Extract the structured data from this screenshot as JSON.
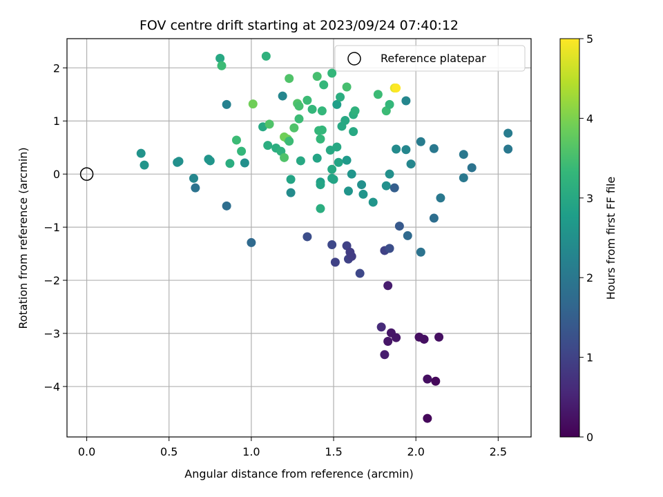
{
  "chart_data": {
    "type": "scatter",
    "title": "FOV centre drift starting at 2023/09/24 07:40:12",
    "xlabel": "Angular distance from reference (arcmin)",
    "ylabel": "Rotation from reference (arcmin)",
    "xlim": [
      -0.12,
      2.7
    ],
    "ylim": [
      -4.95,
      2.55
    ],
    "xticks": [
      "0.0",
      "0.5",
      "1.0",
      "1.5",
      "2.0",
      "2.5"
    ],
    "yticks": [
      "2",
      "1",
      "0",
      "−1",
      "−2",
      "−3",
      "−4"
    ],
    "grid": true,
    "legend": {
      "label": "Reference platepar",
      "placement": "top-right",
      "marker": "hollow-circle"
    },
    "reference_point": {
      "x": 0.0,
      "y": 0.0
    },
    "colorbar": {
      "label": "Hours from first FF file",
      "range": [
        0,
        5
      ],
      "ticks": [
        "0",
        "1",
        "2",
        "3",
        "4",
        "5"
      ],
      "colormap": [
        "#440154",
        "#482878",
        "#3e4989",
        "#31688e",
        "#26828e",
        "#1f9e89",
        "#35b779",
        "#6ece58",
        "#b5de2b",
        "#fde725"
      ]
    },
    "points": [
      {
        "x": 0.33,
        "y": 0.39,
        "c": 2.55
      },
      {
        "x": 0.35,
        "y": 0.17,
        "c": 2.6
      },
      {
        "x": 0.55,
        "y": 0.22,
        "c": 2.5
      },
      {
        "x": 0.56,
        "y": 0.24,
        "c": 2.5
      },
      {
        "x": 0.65,
        "y": -0.08,
        "c": 2.3
      },
      {
        "x": 0.66,
        "y": -0.26,
        "c": 1.9
      },
      {
        "x": 0.74,
        "y": 0.28,
        "c": 2.6
      },
      {
        "x": 0.75,
        "y": 0.25,
        "c": 2.6
      },
      {
        "x": 0.81,
        "y": 2.18,
        "c": 3.0
      },
      {
        "x": 0.82,
        "y": 2.04,
        "c": 3.4
      },
      {
        "x": 0.85,
        "y": 1.31,
        "c": 2.2
      },
      {
        "x": 0.85,
        "y": -0.6,
        "c": 1.8
      },
      {
        "x": 0.87,
        "y": 0.2,
        "c": 3.1
      },
      {
        "x": 0.91,
        "y": 0.64,
        "c": 3.4
      },
      {
        "x": 0.94,
        "y": 0.43,
        "c": 3.3
      },
      {
        "x": 0.96,
        "y": 0.21,
        "c": 2.5
      },
      {
        "x": 1.0,
        "y": -1.29,
        "c": 1.7
      },
      {
        "x": 1.01,
        "y": 1.32,
        "c": 3.9
      },
      {
        "x": 1.07,
        "y": 0.89,
        "c": 3.0
      },
      {
        "x": 1.09,
        "y": 2.22,
        "c": 3.2
      },
      {
        "x": 1.1,
        "y": 0.54,
        "c": 3.1
      },
      {
        "x": 1.11,
        "y": 0.94,
        "c": 3.6
      },
      {
        "x": 1.15,
        "y": 0.49,
        "c": 3.1
      },
      {
        "x": 1.18,
        "y": 0.43,
        "c": 3.2
      },
      {
        "x": 1.19,
        "y": 1.47,
        "c": 2.3
      },
      {
        "x": 1.2,
        "y": 0.31,
        "c": 3.6
      },
      {
        "x": 1.2,
        "y": 0.7,
        "c": 3.9
      },
      {
        "x": 1.22,
        "y": 0.66,
        "c": 3.9
      },
      {
        "x": 1.23,
        "y": 1.8,
        "c": 3.6
      },
      {
        "x": 1.23,
        "y": 0.62,
        "c": 3.4
      },
      {
        "x": 1.24,
        "y": -0.1,
        "c": 2.9
      },
      {
        "x": 1.24,
        "y": -0.35,
        "c": 2.4
      },
      {
        "x": 1.26,
        "y": 0.87,
        "c": 3.6
      },
      {
        "x": 1.28,
        "y": 1.33,
        "c": 3.6
      },
      {
        "x": 1.29,
        "y": 1.28,
        "c": 3.5
      },
      {
        "x": 1.29,
        "y": 1.04,
        "c": 3.4
      },
      {
        "x": 1.3,
        "y": 0.25,
        "c": 3.0
      },
      {
        "x": 1.34,
        "y": 1.39,
        "c": 3.4
      },
      {
        "x": 1.34,
        "y": -1.18,
        "c": 1.2
      },
      {
        "x": 1.37,
        "y": 1.22,
        "c": 3.3
      },
      {
        "x": 1.4,
        "y": 1.84,
        "c": 3.5
      },
      {
        "x": 1.4,
        "y": 0.3,
        "c": 2.9
      },
      {
        "x": 1.41,
        "y": 0.82,
        "c": 3.3
      },
      {
        "x": 1.42,
        "y": 0.66,
        "c": 3.3
      },
      {
        "x": 1.42,
        "y": -0.15,
        "c": 2.8
      },
      {
        "x": 1.42,
        "y": -0.2,
        "c": 2.9
      },
      {
        "x": 1.42,
        "y": -0.65,
        "c": 3.1
      },
      {
        "x": 1.43,
        "y": 0.83,
        "c": 3.3
      },
      {
        "x": 1.43,
        "y": 1.19,
        "c": 3.3
      },
      {
        "x": 1.44,
        "y": 1.68,
        "c": 3.3
      },
      {
        "x": 1.48,
        "y": 0.45,
        "c": 3.0
      },
      {
        "x": 1.49,
        "y": 1.9,
        "c": 3.3
      },
      {
        "x": 1.49,
        "y": 0.09,
        "c": 3.0
      },
      {
        "x": 1.49,
        "y": -0.08,
        "c": 2.9
      },
      {
        "x": 1.5,
        "y": -0.1,
        "c": 2.9
      },
      {
        "x": 1.49,
        "y": -1.33,
        "c": 1.1
      },
      {
        "x": 1.51,
        "y": -1.66,
        "c": 1.0
      },
      {
        "x": 1.52,
        "y": 1.31,
        "c": 2.8
      },
      {
        "x": 1.52,
        "y": 0.51,
        "c": 3.0
      },
      {
        "x": 1.53,
        "y": 0.22,
        "c": 2.9
      },
      {
        "x": 1.54,
        "y": 1.45,
        "c": 3.1
      },
      {
        "x": 1.55,
        "y": 0.9,
        "c": 3.0
      },
      {
        "x": 1.57,
        "y": 1.01,
        "c": 3.0
      },
      {
        "x": 1.58,
        "y": 0.26,
        "c": 2.7
      },
      {
        "x": 1.58,
        "y": 1.64,
        "c": 3.5
      },
      {
        "x": 1.58,
        "y": -1.35,
        "c": 1.0
      },
      {
        "x": 1.59,
        "y": -0.32,
        "c": 2.6
      },
      {
        "x": 1.59,
        "y": -1.6,
        "c": 1.0
      },
      {
        "x": 1.6,
        "y": -1.47,
        "c": 0.9
      },
      {
        "x": 1.61,
        "y": -1.55,
        "c": 0.9
      },
      {
        "x": 1.61,
        "y": 0.0,
        "c": 2.6
      },
      {
        "x": 1.62,
        "y": 0.8,
        "c": 3.0
      },
      {
        "x": 1.62,
        "y": 1.12,
        "c": 3.1
      },
      {
        "x": 1.63,
        "y": 1.19,
        "c": 3.2
      },
      {
        "x": 1.66,
        "y": -1.87,
        "c": 1.1
      },
      {
        "x": 1.67,
        "y": -0.2,
        "c": 2.5
      },
      {
        "x": 1.68,
        "y": -0.38,
        "c": 2.6
      },
      {
        "x": 1.74,
        "y": -0.53,
        "c": 2.6
      },
      {
        "x": 1.77,
        "y": 1.5,
        "c": 3.4
      },
      {
        "x": 1.79,
        "y": -2.88,
        "c": 0.6
      },
      {
        "x": 1.81,
        "y": -1.44,
        "c": 1.0
      },
      {
        "x": 1.81,
        "y": -3.4,
        "c": 0.4
      },
      {
        "x": 1.82,
        "y": 1.19,
        "c": 3.4
      },
      {
        "x": 1.82,
        "y": -0.22,
        "c": 2.5
      },
      {
        "x": 1.83,
        "y": -2.1,
        "c": 0.4
      },
      {
        "x": 1.83,
        "y": -3.15,
        "c": 0.3
      },
      {
        "x": 1.84,
        "y": 0.0,
        "c": 2.5
      },
      {
        "x": 1.84,
        "y": -1.4,
        "c": 1.2
      },
      {
        "x": 1.84,
        "y": 1.31,
        "c": 3.3
      },
      {
        "x": 1.85,
        "y": -2.99,
        "c": 0.3
      },
      {
        "x": 1.87,
        "y": 1.62,
        "c": 4.8
      },
      {
        "x": 1.88,
        "y": 1.62,
        "c": 5.0
      },
      {
        "x": 1.87,
        "y": -0.26,
        "c": 1.5
      },
      {
        "x": 1.88,
        "y": 0.47,
        "c": 2.4
      },
      {
        "x": 1.88,
        "y": -3.08,
        "c": 0.3
      },
      {
        "x": 1.9,
        "y": -0.98,
        "c": 1.4
      },
      {
        "x": 1.94,
        "y": 1.38,
        "c": 2.3
      },
      {
        "x": 1.94,
        "y": 0.46,
        "c": 2.3
      },
      {
        "x": 1.95,
        "y": -1.16,
        "c": 1.7
      },
      {
        "x": 1.97,
        "y": 0.19,
        "c": 2.3
      },
      {
        "x": 2.02,
        "y": -3.07,
        "c": 0.2
      },
      {
        "x": 2.03,
        "y": 0.61,
        "c": 2.1
      },
      {
        "x": 2.03,
        "y": -1.47,
        "c": 1.9
      },
      {
        "x": 2.05,
        "y": -3.11,
        "c": 0.2
      },
      {
        "x": 2.07,
        "y": -3.86,
        "c": 0.2
      },
      {
        "x": 2.07,
        "y": -4.6,
        "c": 0.1
      },
      {
        "x": 2.11,
        "y": 0.48,
        "c": 2.0
      },
      {
        "x": 2.11,
        "y": -0.83,
        "c": 1.8
      },
      {
        "x": 2.12,
        "y": -3.9,
        "c": 0.1
      },
      {
        "x": 2.14,
        "y": -3.07,
        "c": 0.2
      },
      {
        "x": 2.15,
        "y": -0.45,
        "c": 2.0
      },
      {
        "x": 2.29,
        "y": 0.37,
        "c": 2.0
      },
      {
        "x": 2.29,
        "y": -0.07,
        "c": 2.0
      },
      {
        "x": 2.34,
        "y": 0.12,
        "c": 1.9
      },
      {
        "x": 2.56,
        "y": 0.77,
        "c": 2.1
      },
      {
        "x": 2.56,
        "y": 0.47,
        "c": 2.0
      }
    ]
  }
}
